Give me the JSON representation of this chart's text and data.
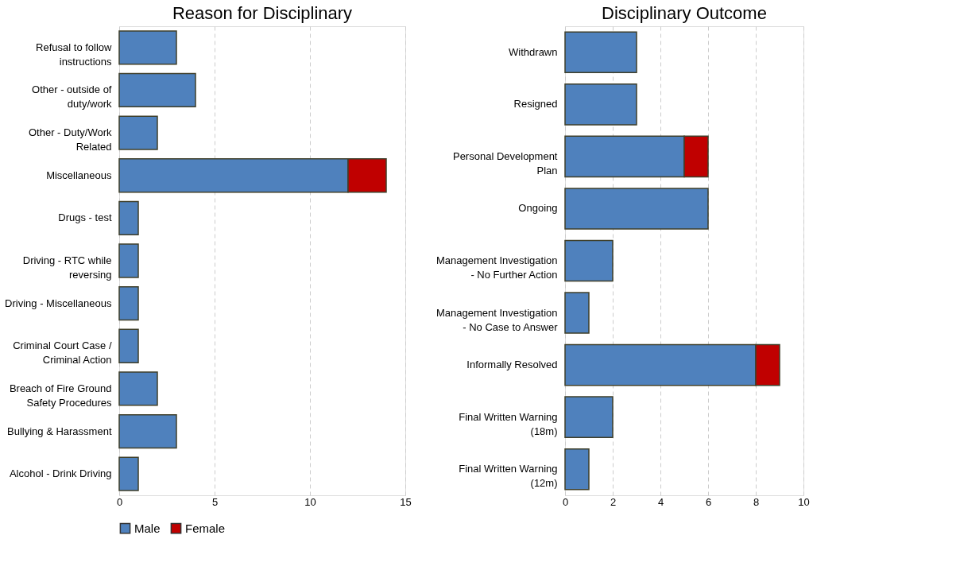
{
  "chart_data": [
    {
      "type": "bar",
      "title": "Reason for Disciplinary",
      "orientation": "horizontal",
      "stacked": true,
      "categories": [
        "Refusal to follow instructions",
        "Other - outside of duty/work",
        "Other - Duty/Work Related",
        "Miscellaneous",
        "Drugs - test",
        "Driving - RTC while reversing",
        "Driving - Miscellaneous",
        "Criminal Court Case / Criminal Action",
        "Breach of Fire Ground Safety Procedures",
        "Bullying & Harassment",
        "Alcohol - Drink Driving"
      ],
      "series": [
        {
          "name": "Male",
          "color": "#4f81bd",
          "values": [
            3,
            4,
            2,
            12,
            1,
            1,
            1,
            1,
            2,
            3,
            1
          ]
        },
        {
          "name": "Female",
          "color": "#c00000",
          "values": [
            null,
            null,
            null,
            2,
            null,
            null,
            null,
            null,
            null,
            null,
            null
          ]
        }
      ],
      "xlim": [
        0,
        15
      ],
      "xticks": [
        0,
        5,
        10,
        15
      ],
      "grid": "x",
      "legend": "bottom"
    },
    {
      "type": "bar",
      "title": "Disciplinary Outcome",
      "orientation": "horizontal",
      "stacked": true,
      "categories": [
        "Withdrawn",
        "Resigned",
        "Personal Development Plan",
        "Ongoing",
        "Management Investigation - No Further Action",
        "Management Investigation - No Case to Answer",
        "Informally Resolved",
        "Final Written Warning (18m)",
        "Final Written Warning (12m)"
      ],
      "series": [
        {
          "name": "Male",
          "color": "#4f81bd",
          "values": [
            3,
            3,
            5,
            6,
            2,
            1,
            8,
            2,
            1
          ]
        },
        {
          "name": "Female",
          "color": "#c00000",
          "values": [
            null,
            null,
            1,
            null,
            null,
            null,
            1,
            null,
            null
          ]
        }
      ],
      "xlim": [
        0,
        10
      ],
      "xticks": [
        0,
        2,
        4,
        6,
        8,
        10
      ],
      "grid": "x",
      "legend": "bottom"
    }
  ]
}
